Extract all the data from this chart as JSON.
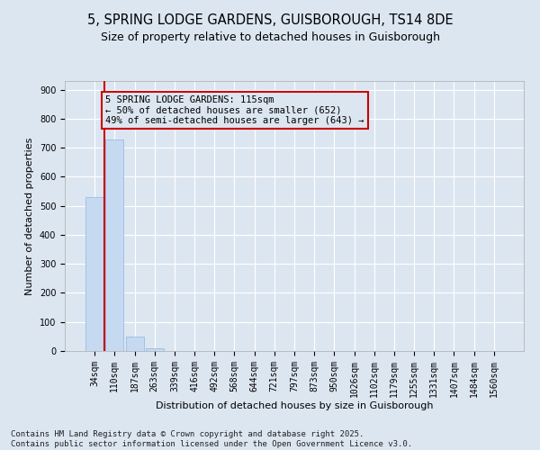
{
  "title_line1": "5, SPRING LODGE GARDENS, GUISBOROUGH, TS14 8DE",
  "title_line2": "Size of property relative to detached houses in Guisborough",
  "xlabel": "Distribution of detached houses by size in Guisborough",
  "ylabel": "Number of detached properties",
  "bar_color": "#c5d9f1",
  "bar_edge_color": "#8db4e2",
  "annotation_box_color": "#cc0000",
  "annotation_text": "5 SPRING LODGE GARDENS: 115sqm\n← 50% of detached houses are smaller (652)\n49% of semi-detached houses are larger (643) →",
  "property_line_color": "#cc0000",
  "categories": [
    "34sqm",
    "110sqm",
    "187sqm",
    "263sqm",
    "339sqm",
    "416sqm",
    "492sqm",
    "568sqm",
    "644sqm",
    "721sqm",
    "797sqm",
    "873sqm",
    "950sqm",
    "1026sqm",
    "1102sqm",
    "1179sqm",
    "1255sqm",
    "1331sqm",
    "1407sqm",
    "1484sqm",
    "1560sqm"
  ],
  "values": [
    530,
    730,
    50,
    8,
    1,
    0,
    0,
    0,
    0,
    0,
    0,
    0,
    0,
    0,
    0,
    0,
    0,
    0,
    0,
    0,
    0
  ],
  "ylim": [
    0,
    930
  ],
  "yticks": [
    0,
    100,
    200,
    300,
    400,
    500,
    600,
    700,
    800,
    900
  ],
  "footer": "Contains HM Land Registry data © Crown copyright and database right 2025.\nContains public sector information licensed under the Open Government Licence v3.0.",
  "background_color": "#dce6f1",
  "grid_color": "#ffffff",
  "title_fontsize": 10.5,
  "subtitle_fontsize": 9,
  "footer_fontsize": 6.5,
  "annotation_fontsize": 7.5,
  "tick_fontsize": 7,
  "ylabel_fontsize": 8,
  "xlabel_fontsize": 8
}
